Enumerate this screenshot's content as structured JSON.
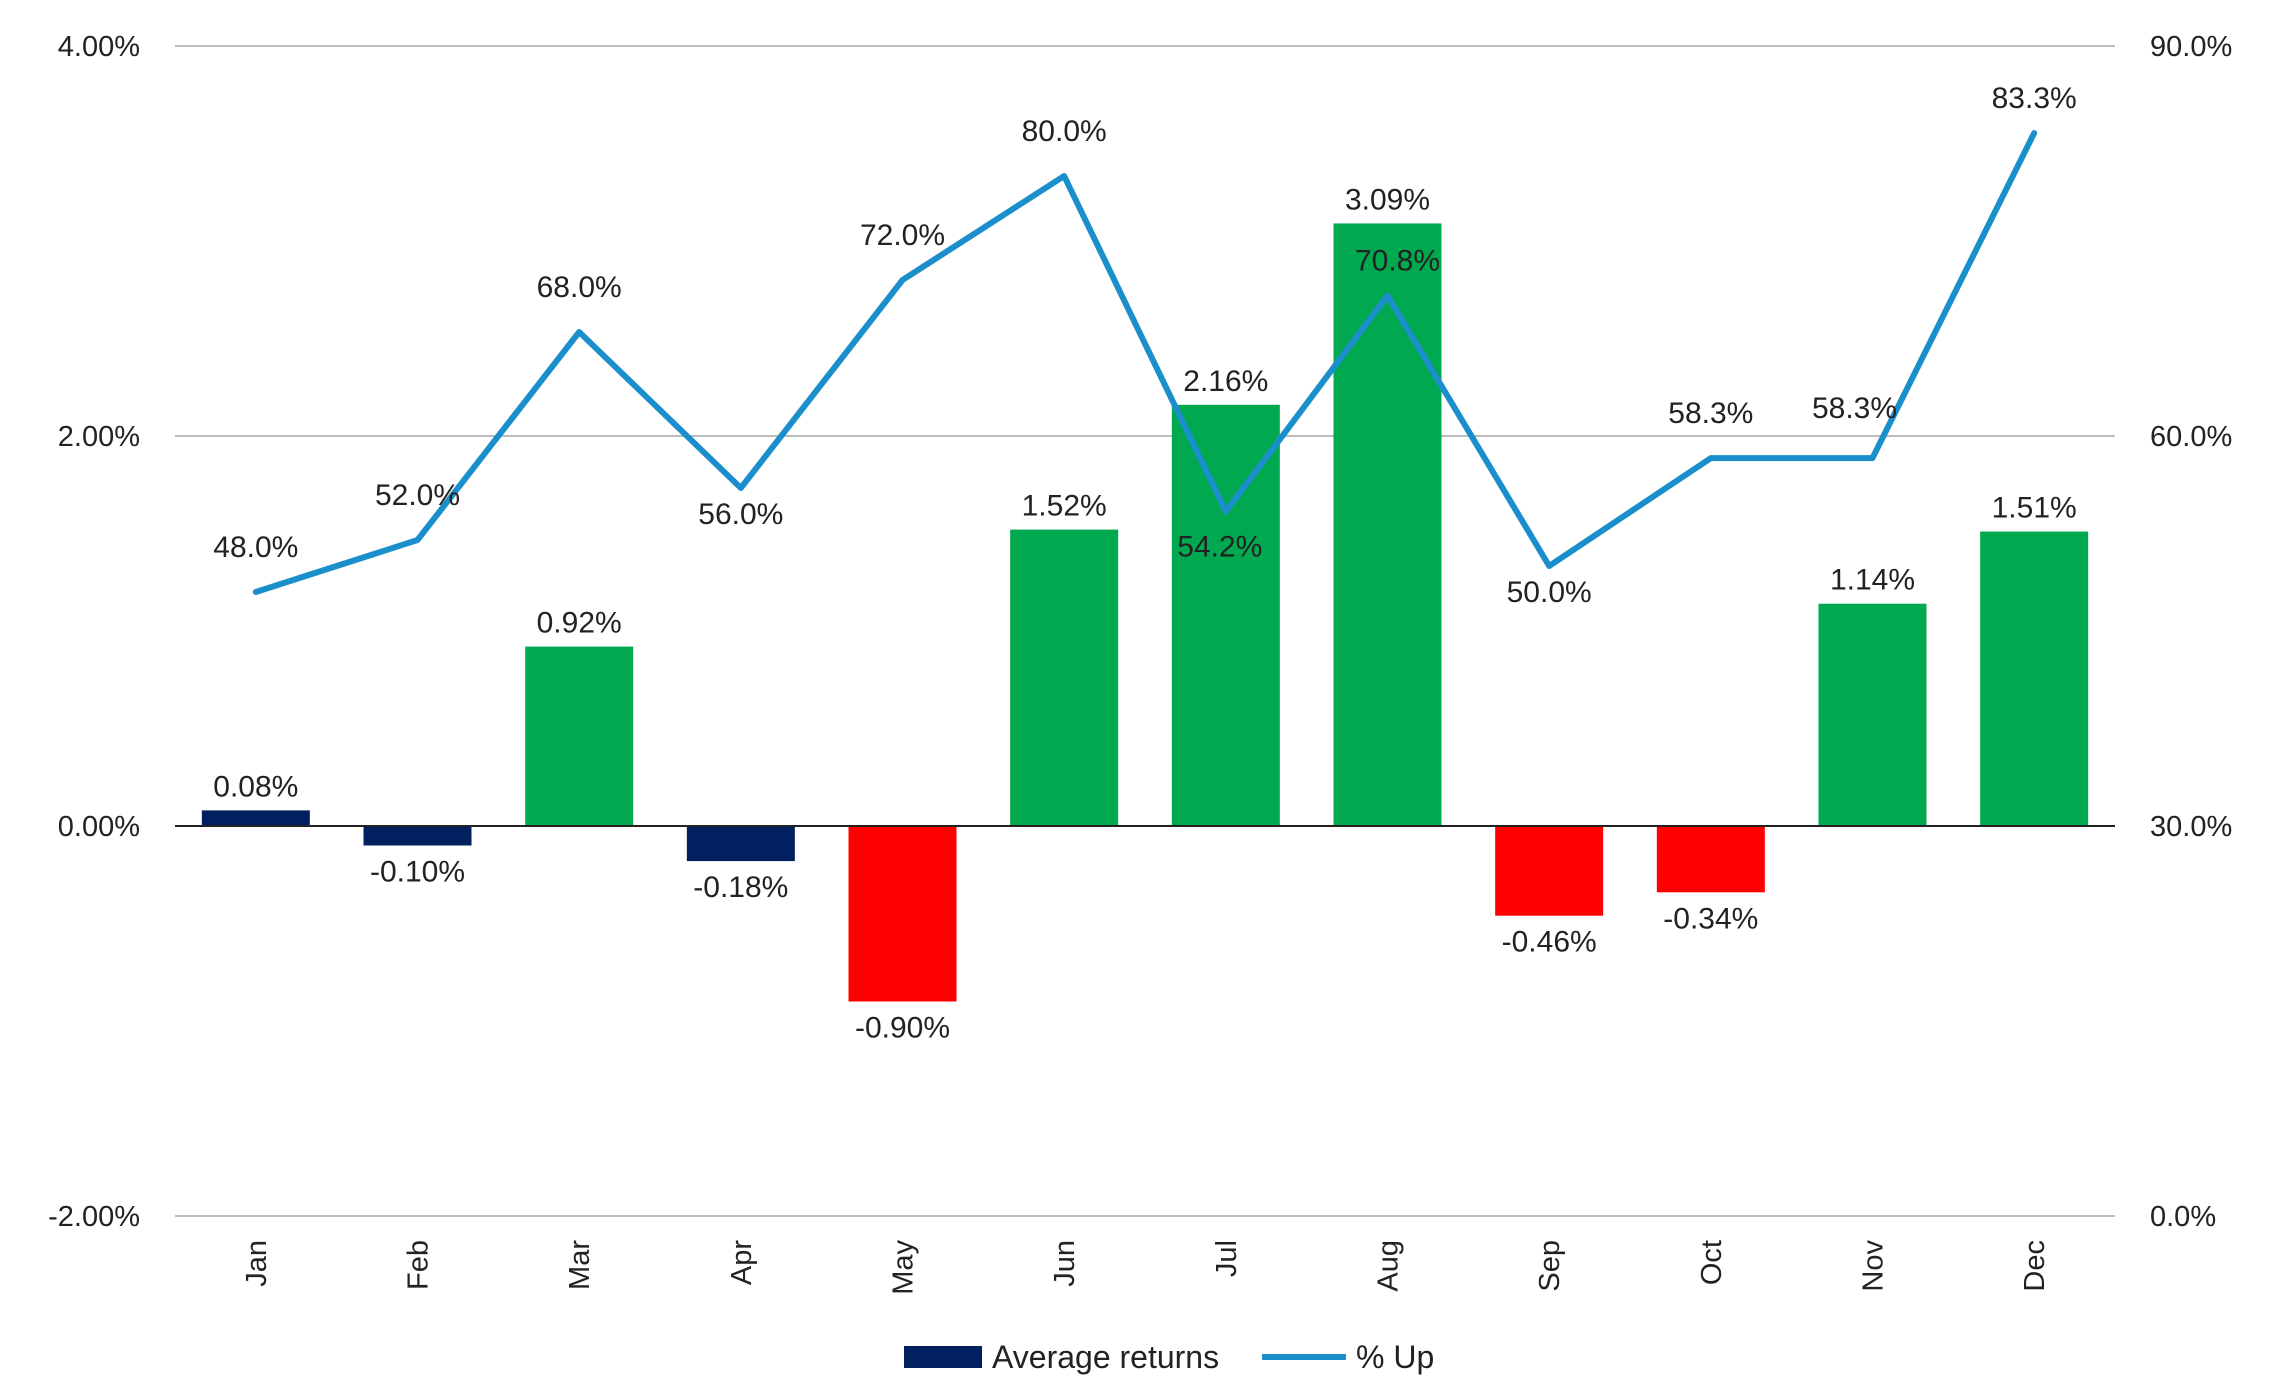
{
  "chart_data": {
    "type": "bar",
    "categories": [
      "Jan",
      "Feb",
      "Mar",
      "Apr",
      "May",
      "Jun",
      "Jul",
      "Aug",
      "Sep",
      "Oct",
      "Nov",
      "Dec"
    ],
    "series": [
      {
        "name": "Average returns",
        "type": "bar",
        "axis": "left",
        "values": [
          0.08,
          -0.1,
          0.92,
          -0.18,
          -0.9,
          1.52,
          2.16,
          3.09,
          -0.46,
          -0.34,
          1.14,
          1.51
        ],
        "labels": [
          "0.08%",
          "-0.10%",
          "0.92%",
          "-0.18%",
          "-0.90%",
          "1.52%",
          "2.16%",
          "3.09%",
          "-0.46%",
          "-0.34%",
          "1.14%",
          "1.51%"
        ],
        "color": "#002060"
      },
      {
        "name": "% Up",
        "type": "line",
        "axis": "right",
        "values": [
          48.0,
          52.0,
          68.0,
          56.0,
          72.0,
          80.0,
          54.2,
          70.8,
          50.0,
          58.3,
          58.3,
          83.3
        ],
        "labels": [
          "48.0%",
          "52.0%",
          "68.0%",
          "56.0%",
          "72.0%",
          "80.0%",
          "54.2%",
          "70.8%",
          "50.0%",
          "58.3%",
          "58.3%",
          "83.3%"
        ],
        "color": "#1a8fcc"
      }
    ],
    "bar_colors": {
      "strong_positive": "#00a94f",
      "strong_negative": "#ff0000",
      "small_move": "#002060"
    },
    "ylim_left": [
      -2.0,
      4.0
    ],
    "yticks_left": [
      "-2.00%",
      "0.00%",
      "2.00%",
      "4.00%"
    ],
    "ylim_right": [
      0.0,
      90.0
    ],
    "yticks_right": [
      "0.0%",
      "30.0%",
      "60.0%",
      "90.0%"
    ],
    "gridlines": true,
    "legend": {
      "position": "bottom-center",
      "entries": [
        "Average returns",
        "% Up"
      ]
    }
  }
}
